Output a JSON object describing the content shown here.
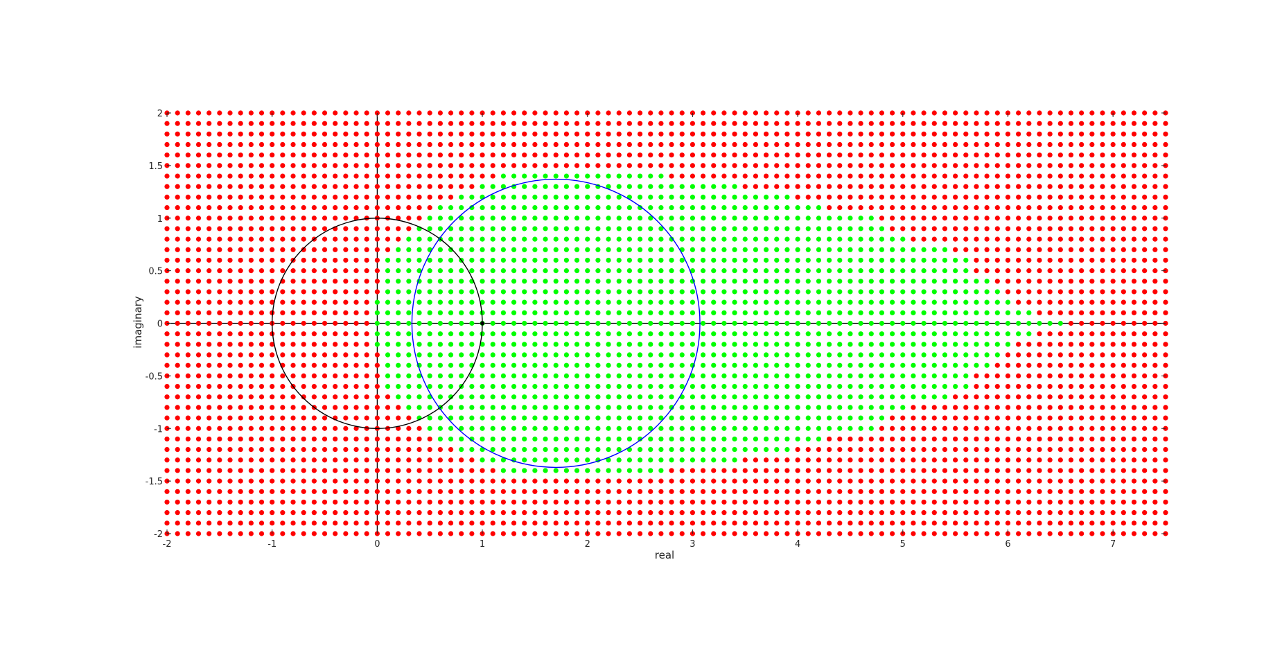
{
  "chart_data": {
    "type": "scatter",
    "title": "",
    "xlabel": "real",
    "ylabel": "imaginary",
    "xlim": [
      -2,
      7.5
    ],
    "ylim": [
      -2,
      2
    ],
    "grid": false,
    "legend": "none",
    "x_ticks": [
      -2,
      -1,
      0,
      1,
      2,
      3,
      4,
      5,
      6,
      7
    ],
    "x_tick_labels": [
      "-2",
      "-1",
      "0",
      "1",
      "2",
      "3",
      "4",
      "5",
      "6",
      "7"
    ],
    "y_ticks": [
      -2,
      -1.5,
      -1,
      -0.5,
      0,
      0.5,
      1,
      1.5,
      2
    ],
    "y_tick_labels": [
      "-2",
      "-1.5",
      "-1",
      "-0.5",
      "0",
      "0.5",
      "1",
      "1.5",
      "2"
    ],
    "point_grid": {
      "x_start": -2,
      "x_end": 7.5,
      "y_start": -2,
      "y_end": 2,
      "step": 0.1
    },
    "colors": {
      "stable": "#00ff00",
      "unstable": "#ff0000",
      "unit_circle": "#000000",
      "region_circle": "#0000ff",
      "axes": "#000000"
    },
    "stable_region_rows": [
      {
        "y": 1.4,
        "x_min": 1.2,
        "x_max": 2.7
      },
      {
        "y": 1.3,
        "x_min": 1.0,
        "x_max": 3.4
      },
      {
        "y": 1.2,
        "x_min": 0.8,
        "x_max": 3.9
      },
      {
        "y": 1.1,
        "x_min": 0.6,
        "x_max": 4.2
      },
      {
        "y": 1.0,
        "x_min": 0.5,
        "x_max": 4.7
      },
      {
        "y": 0.9,
        "x_min": 0.4,
        "x_max": 4.8
      },
      {
        "y": 0.8,
        "x_min": 0.3,
        "x_max": 5.0
      },
      {
        "y": 0.7,
        "x_min": 0.2,
        "x_max": 5.4
      },
      {
        "y": 0.6,
        "x_min": 0.1,
        "x_max": 5.6
      },
      {
        "y": 0.5,
        "x_min": 0.1,
        "x_max": 5.6
      },
      {
        "y": 0.4,
        "x_min": 0.1,
        "x_max": 5.8
      },
      {
        "y": 0.3,
        "x_min": 0.1,
        "x_max": 5.9
      },
      {
        "y": 0.2,
        "x_min": 0.0,
        "x_max": 6.0
      },
      {
        "y": 0.1,
        "x_min": 0.0,
        "x_max": 6.2
      },
      {
        "y": 0.0,
        "x_min": 0.0,
        "x_max": 6.5
      }
    ],
    "series": [
      {
        "shape": "circle",
        "center": [
          0,
          0
        ],
        "radius": 1,
        "color": "#000000"
      },
      {
        "shape": "circle",
        "center": [
          1.7,
          0
        ],
        "radius": 1.37,
        "color": "#0000ff"
      }
    ]
  }
}
